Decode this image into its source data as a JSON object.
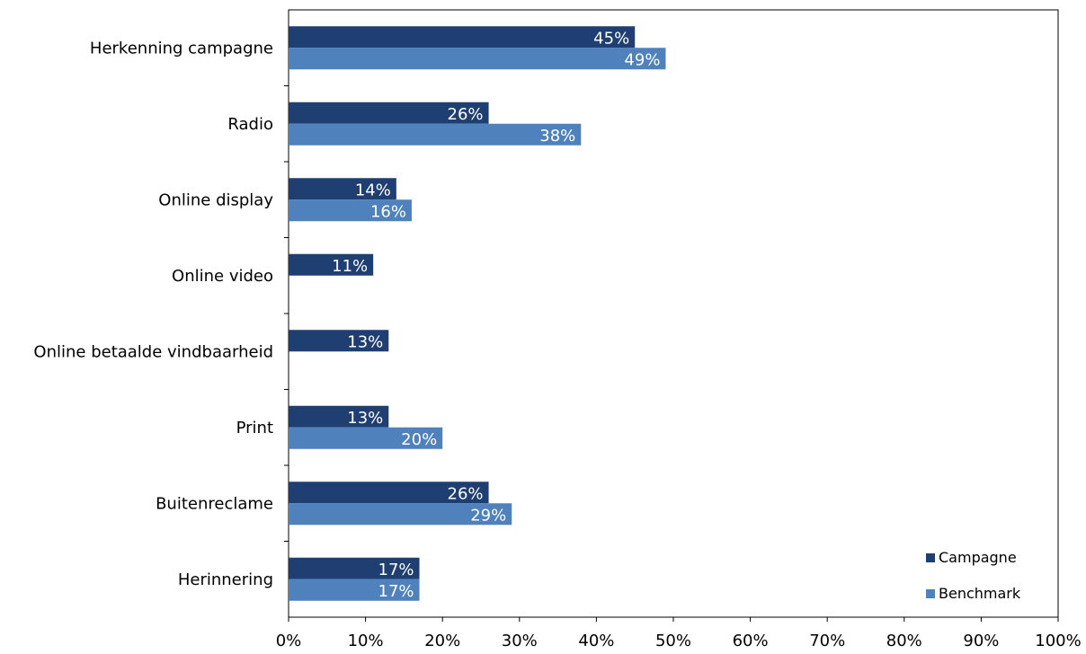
{
  "chart_data": {
    "type": "bar",
    "orientation": "horizontal",
    "title": "",
    "xlabel": "",
    "ylabel": "",
    "categories": [
      "Herkenning campagne",
      "Radio",
      "Online display",
      "Online video",
      "Online betaalde vindbaarheid",
      "Print",
      "Buitenreclame",
      "Herinnering"
    ],
    "series": [
      {
        "name": "Campagne",
        "color": "#1F3F73",
        "values": [
          45,
          26,
          14,
          11,
          13,
          13,
          26,
          17
        ],
        "labels": [
          "45%",
          "26%",
          "14%",
          "11%",
          "13%",
          "13%",
          "26%",
          "17%"
        ]
      },
      {
        "name": "Benchmark",
        "color": "#4F81BD",
        "values": [
          49,
          38,
          16,
          null,
          null,
          20,
          29,
          17
        ],
        "labels": [
          "49%",
          "38%",
          "16%",
          "",
          "",
          "20%",
          "29%",
          "17%"
        ]
      }
    ],
    "xlim": [
      0,
      100
    ],
    "xticks": [
      "0%",
      "10%",
      "20%",
      "30%",
      "40%",
      "50%",
      "60%",
      "70%",
      "80%",
      "90%",
      "100%"
    ],
    "legend_position": "bottom-right",
    "grid": false
  }
}
